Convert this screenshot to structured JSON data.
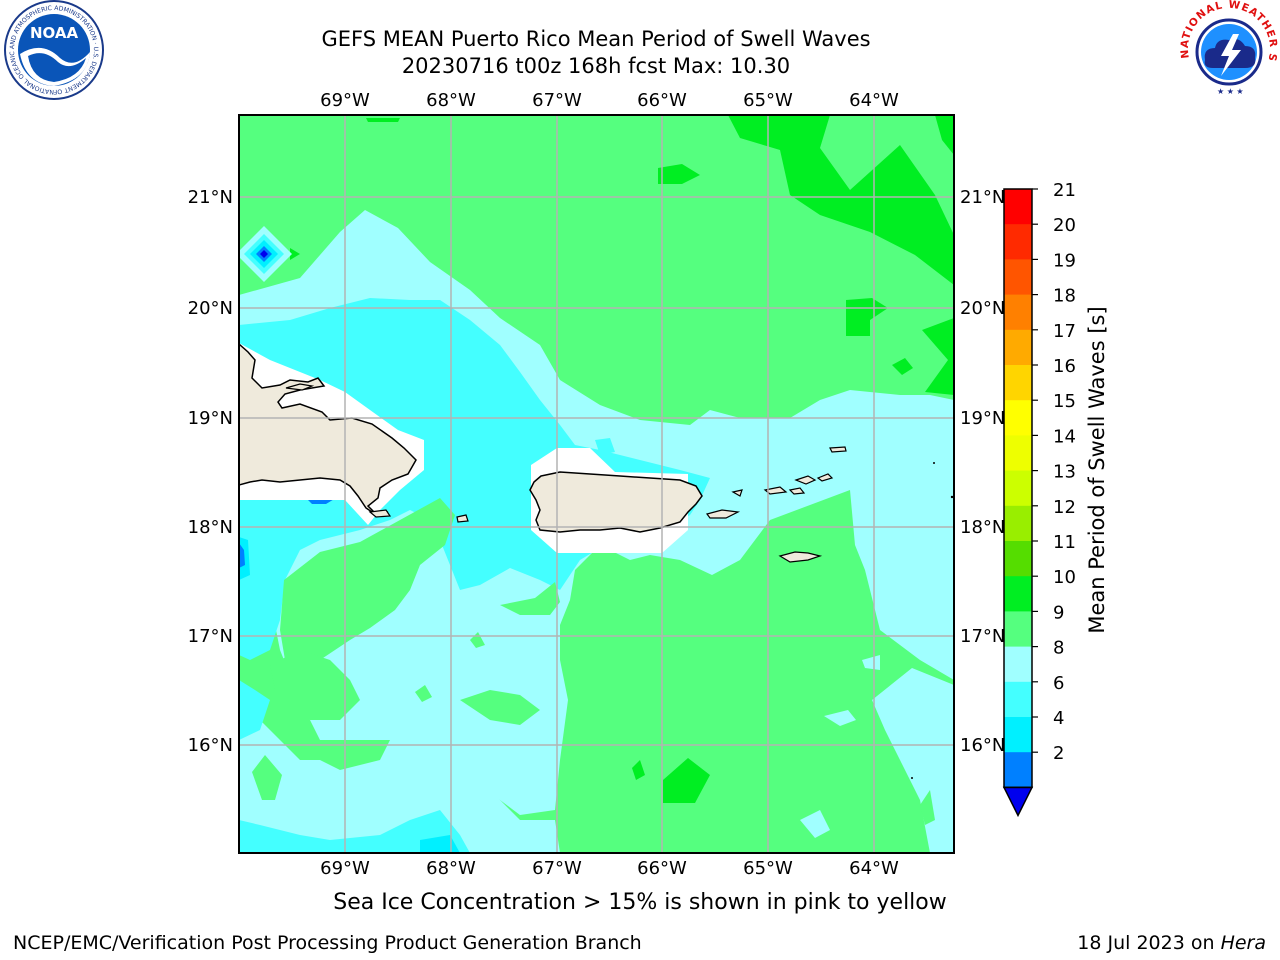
{
  "header": {
    "title_line1": "GEFS MEAN Puerto Rico Mean Period of Swell Waves",
    "title_line2": "20230716 t00z 168h fcst   Max: 10.30"
  },
  "map": {
    "lon_labels": [
      "69°W",
      "68°W",
      "67°W",
      "66°W",
      "65°W",
      "64°W"
    ],
    "lat_labels": [
      "21°N",
      "20°N",
      "19°N",
      "18°N",
      "17°N",
      "16°N"
    ],
    "fill_colors": {
      "green_9_10": "#55ff7f",
      "green_10_11": "#00ee22",
      "cyan_8_9": "#a0ffff",
      "cyan_6_8": "#44ffff",
      "cyan_4_6": "#00f0ff",
      "blue_2_4": "#0080ff",
      "land": "#efeadc",
      "grid": "#b3b3b3"
    }
  },
  "colorbar": {
    "label": "Mean Period of Swell Waves [s]",
    "ticks": [
      "21",
      "20",
      "19",
      "18",
      "17",
      "16",
      "15",
      "14",
      "13",
      "12",
      "11",
      "10",
      "9",
      "8",
      "6",
      "4",
      "2"
    ],
    "colors": [
      "#ff0000",
      "#ff2a00",
      "#ff5500",
      "#ff8000",
      "#ffaa00",
      "#ffd500",
      "#ffff00",
      "#eeff00",
      "#ccff00",
      "#99ee00",
      "#55dd00",
      "#00ee22",
      "#55ff7f",
      "#a0ffff",
      "#44ffff",
      "#00f0ff",
      "#0080ff"
    ],
    "extend_color": "#0000ee"
  },
  "footer": {
    "ice_note": "Sea Ice Concentration > 15% is shown in pink to yellow",
    "credit": "NCEP/EMC/Verification Post Processing Product Generation Branch",
    "date_prefix": "18 Jul 2023 on ",
    "machine": "Hera"
  },
  "logos": {
    "noaa_text": "NOAA",
    "noaa_ring_text": "NATIONAL OCEANIC AND ATMOSPHERIC ADMINISTRATION · U.S. DEPARTMENT OF COMMERCE",
    "nws_ring_text": "NATIONAL WEATHER SERVICE"
  }
}
